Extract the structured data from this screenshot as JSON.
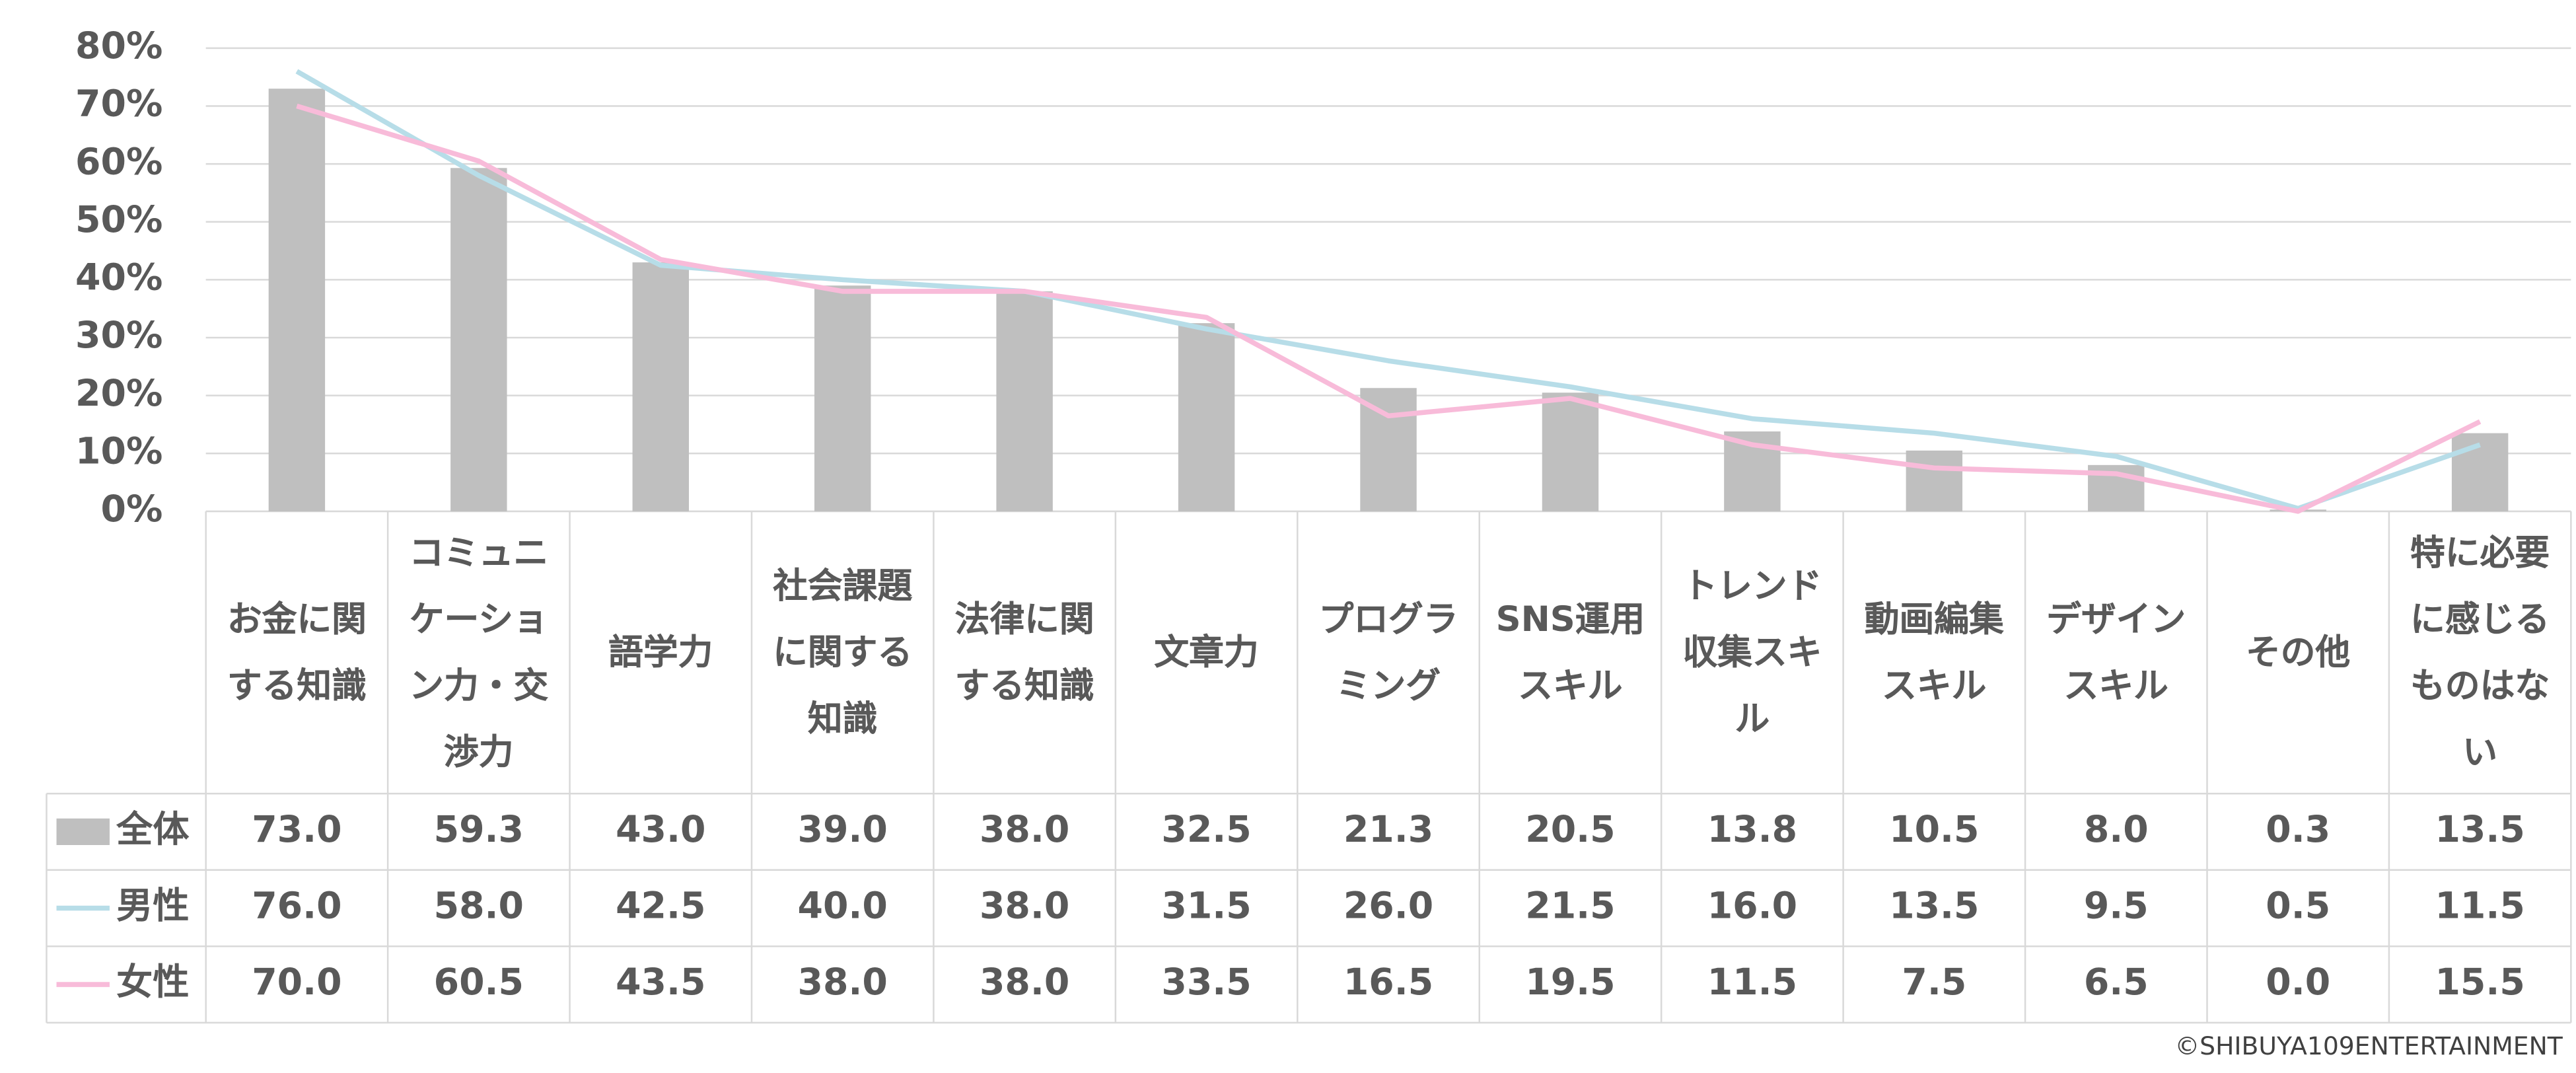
{
  "chart_data": {
    "type": "bar",
    "categories": [
      "お金に関する知識",
      "コミュニケーション力・交渉力",
      "語学力",
      "社会課題に関する知識",
      "法律に関する知識",
      "文章力",
      "プログラミング",
      "SNS運用スキル",
      "トレンド収集スキル",
      "動画編集スキル",
      "デザインスキル",
      "その他",
      "特に必要に感じるものはない"
    ],
    "series": [
      {
        "name": "全体",
        "type": "bar",
        "color": "#bfbfbf",
        "values": [
          73.0,
          59.3,
          43.0,
          39.0,
          38.0,
          32.5,
          21.3,
          20.5,
          13.8,
          10.5,
          8.0,
          0.3,
          13.5
        ],
        "value_labels": [
          "73.0",
          "59.3",
          "43.0",
          "39.0",
          "38.0",
          "32.5",
          "21.3",
          "20.5",
          "13.8",
          "10.5",
          "8.0",
          "0.3",
          "13.5"
        ]
      },
      {
        "name": "男性",
        "type": "line",
        "color": "#b7dde8",
        "values": [
          76.0,
          58.0,
          42.5,
          40.0,
          38.0,
          31.5,
          26.0,
          21.5,
          16.0,
          13.5,
          9.5,
          0.5,
          11.5
        ],
        "value_labels": [
          "76.0",
          "58.0",
          "42.5",
          "40.0",
          "38.0",
          "31.5",
          "26.0",
          "21.5",
          "16.0",
          "13.5",
          "9.5",
          "0.5",
          "11.5"
        ]
      },
      {
        "name": "女性",
        "type": "line",
        "color": "#f8bbd9",
        "values": [
          70.0,
          60.5,
          43.5,
          38.0,
          38.0,
          33.5,
          16.5,
          19.5,
          11.5,
          7.5,
          6.5,
          0.0,
          15.5
        ],
        "value_labels": [
          "70.0",
          "60.5",
          "43.5",
          "38.0",
          "38.0",
          "33.5",
          "16.5",
          "19.5",
          "11.5",
          "7.5",
          "6.5",
          "0.0",
          "15.5"
        ]
      }
    ],
    "ylim": [
      0,
      80
    ],
    "yticks": [
      {
        "value": 0,
        "label": "0%"
      },
      {
        "value": 10,
        "label": "10%"
      },
      {
        "value": 20,
        "label": "20%"
      },
      {
        "value": 30,
        "label": "30%"
      },
      {
        "value": 40,
        "label": "40%"
      },
      {
        "value": 50,
        "label": "50%"
      },
      {
        "value": 60,
        "label": "60%"
      },
      {
        "value": 70,
        "label": "70%"
      },
      {
        "value": 80,
        "label": "80%"
      }
    ],
    "grid": true,
    "source": "©SHIBUYA109ENTERTAINMENT"
  }
}
